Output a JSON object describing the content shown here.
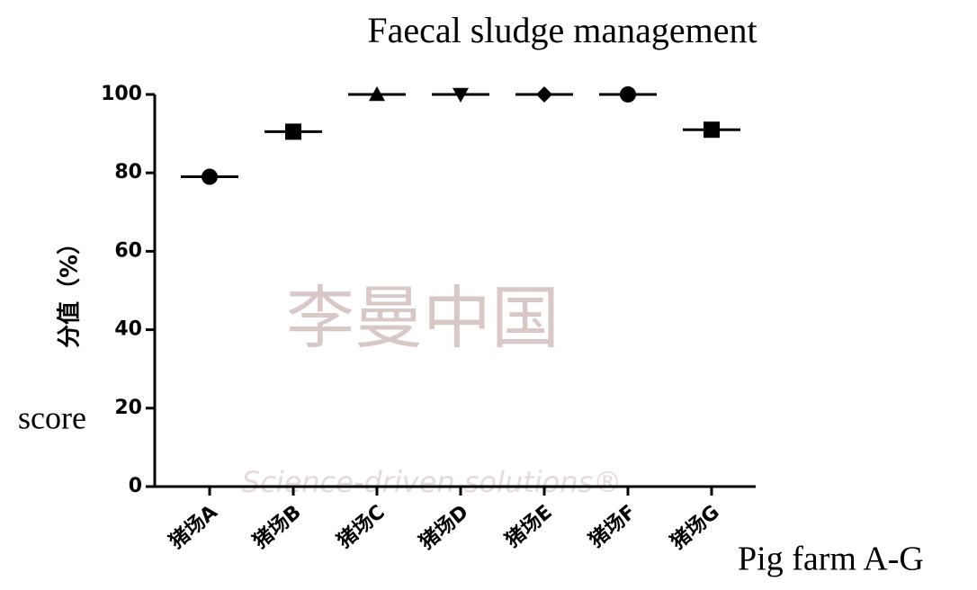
{
  "chart_data": {
    "type": "dot",
    "title": "Faecal sludge management",
    "y_label": "分值（%）",
    "annotations": [
      "score",
      "Pig farm A-G"
    ],
    "watermark": [
      "李曼中国",
      "Science-driven solutions®"
    ],
    "categories": [
      "猪场A",
      "猪场B",
      "猪场C",
      "猪场D",
      "猪场E",
      "猪场F",
      "猪场G"
    ],
    "values": [
      79,
      90.5,
      100,
      100,
      100,
      100,
      91
    ],
    "markers": [
      "circle",
      "square",
      "triangle-up",
      "triangle-down",
      "diamond",
      "circle",
      "square"
    ],
    "color": "#000000",
    "ylim": [
      0,
      100
    ],
    "yticks": [
      0,
      20,
      40,
      60,
      80,
      100
    ]
  }
}
